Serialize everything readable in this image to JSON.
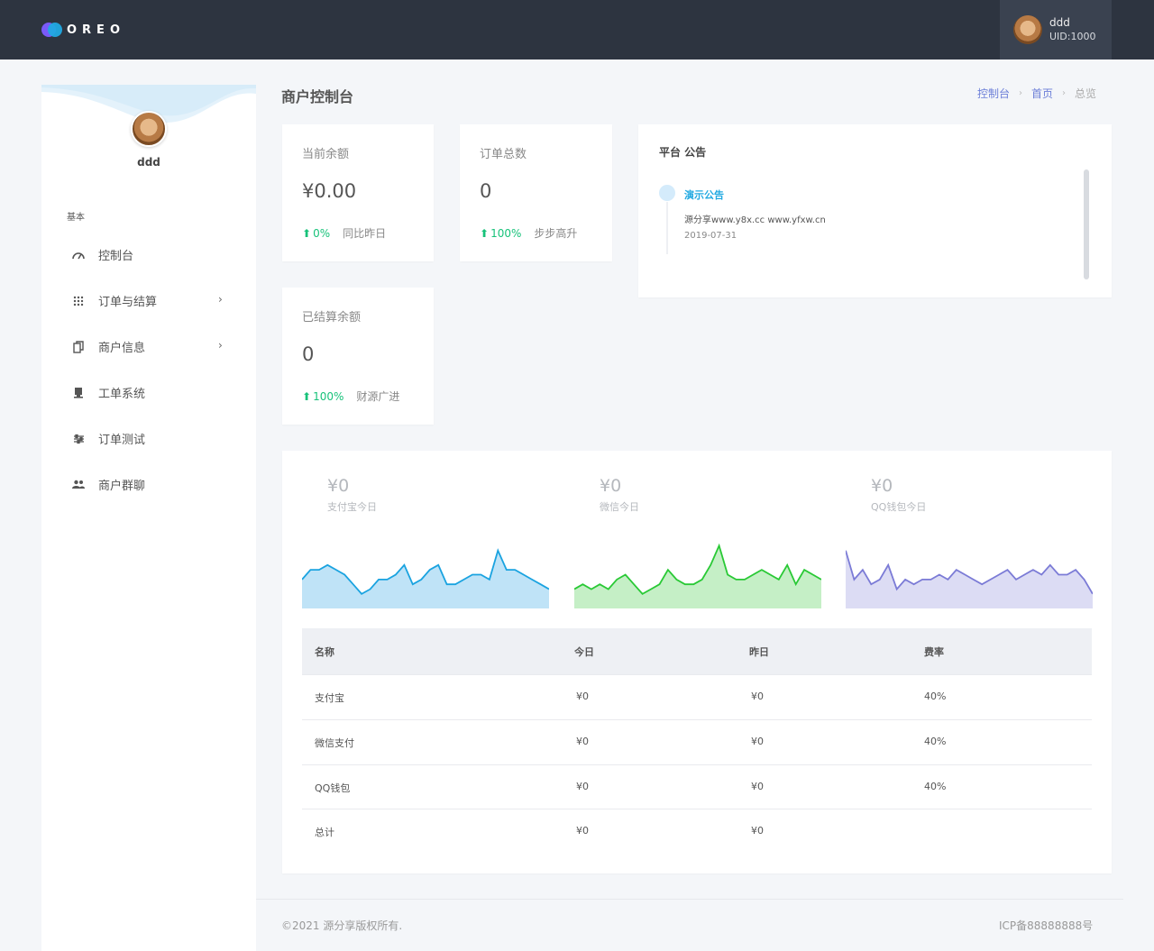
{
  "brand": {
    "name": "OREO"
  },
  "user": {
    "name": "ddd",
    "uid": "UID:1000"
  },
  "sidebar": {
    "profile_name": "ddd",
    "section": "基本",
    "items": [
      {
        "label": "控制台",
        "icon": "dashboard-icon",
        "has_arrow": false
      },
      {
        "label": "订单与结算",
        "icon": "apps-icon",
        "has_arrow": true
      },
      {
        "label": "商户信息",
        "icon": "copy-icon",
        "has_arrow": true
      },
      {
        "label": "工单系统",
        "icon": "desktop-icon",
        "has_arrow": false
      },
      {
        "label": "订单测试",
        "icon": "settings-icon",
        "has_arrow": false
      },
      {
        "label": "商户群聊",
        "icon": "group-icon",
        "has_arrow": false
      }
    ],
    "arrow": "›"
  },
  "page": {
    "title": "商户控制台"
  },
  "breadcrumb": {
    "items": [
      "控制台",
      "首页",
      "总览"
    ],
    "separator": "›"
  },
  "stats": [
    {
      "label": "当前余额",
      "value": "¥0.00",
      "trend": "0%",
      "note": "同比昨日"
    },
    {
      "label": "订单总数",
      "value": "0",
      "trend": "100%",
      "note": "步步高升"
    },
    {
      "label": "已结算余额",
      "value": "0",
      "trend": "100%",
      "note": "财源广进"
    }
  ],
  "notice": {
    "title": "平台 公告",
    "head": "演示公告",
    "body": "源分享www.y8x.cc www.yfxw.cn",
    "date": "2019-07-31"
  },
  "payments": [
    {
      "value": "¥0",
      "label": "支付宝今日",
      "color": "#1aa3e0",
      "fill": "#bfe3f7",
      "spark": [
        6,
        8,
        8,
        9,
        8,
        7,
        5,
        3,
        4,
        6,
        6,
        7,
        9,
        5,
        6,
        8,
        9,
        5,
        5,
        6,
        7,
        7,
        6,
        12,
        8,
        8,
        7,
        6,
        5,
        4
      ]
    },
    {
      "value": "¥0",
      "label": "微信今日",
      "color": "#29c935",
      "fill": "#c5efc6",
      "spark": [
        4,
        5,
        4,
        5,
        4,
        6,
        7,
        5,
        3,
        4,
        5,
        8,
        6,
        5,
        5,
        6,
        9,
        13,
        7,
        6,
        6,
        7,
        8,
        7,
        6,
        9,
        5,
        8,
        7,
        6
      ]
    },
    {
      "value": "¥0",
      "label": "QQ钱包今日",
      "color": "#7b7bd6",
      "fill": "#dcdcf4",
      "spark": [
        12,
        6,
        8,
        5,
        6,
        9,
        4,
        6,
        5,
        6,
        6,
        7,
        6,
        8,
        7,
        6,
        5,
        6,
        7,
        8,
        6,
        7,
        8,
        7,
        9,
        7,
        7,
        8,
        6,
        3
      ]
    }
  ],
  "table": {
    "headers": [
      "名称",
      "今日",
      "昨日",
      "费率"
    ],
    "rows": [
      [
        "支付宝",
        "¥0",
        "¥0",
        "40%"
      ],
      [
        "微信支付",
        "¥0",
        "¥0",
        "40%"
      ],
      [
        "QQ钱包",
        "¥0",
        "¥0",
        "40%"
      ],
      [
        "总计",
        "¥0",
        "¥0",
        ""
      ]
    ]
  },
  "footer": {
    "copyright": "©2021 源分享版权所有.",
    "icp": "ICP备88888888号"
  },
  "colors": {
    "topbar": "#2d3440",
    "accent_green": "#18c27a",
    "accent_blue": "#21a9e1"
  }
}
